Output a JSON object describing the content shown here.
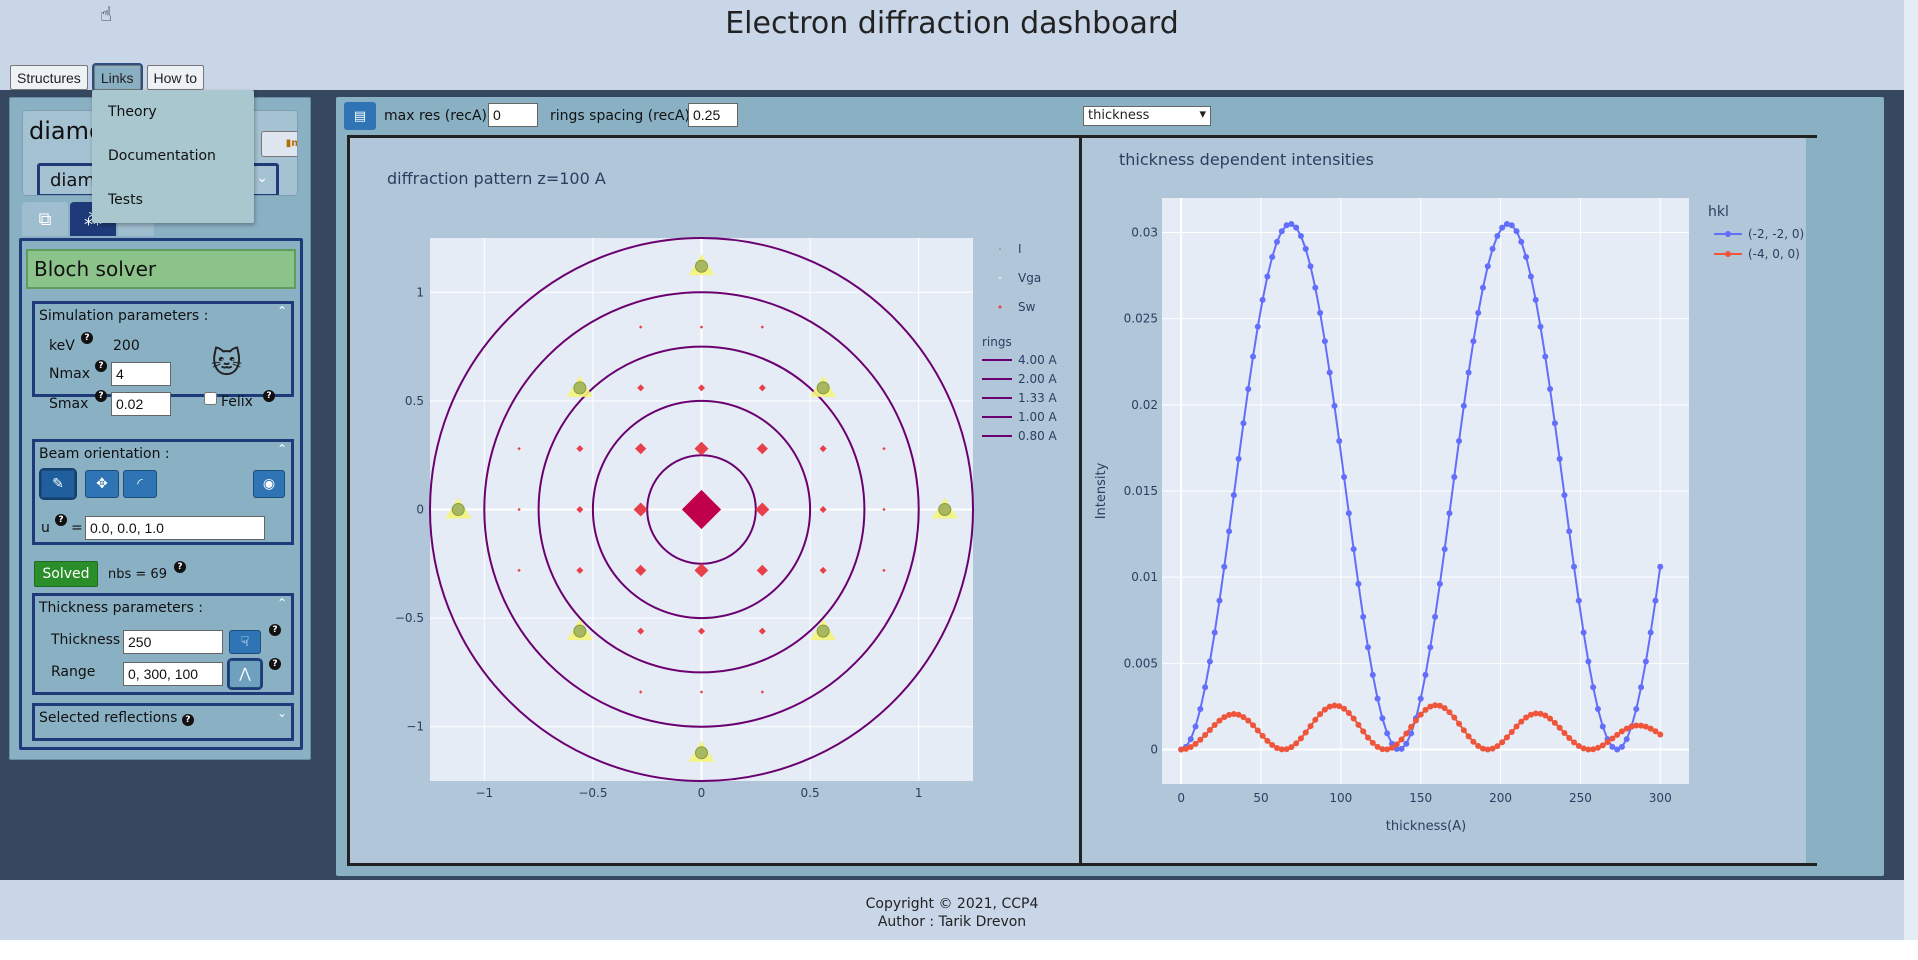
{
  "app": {
    "title": "Electron diffraction dashboard"
  },
  "navbar": {
    "structures": "Structures",
    "links": "Links",
    "howto": "How to"
  },
  "links_menu": {
    "items": [
      "Theory",
      "Documentation",
      "Tests"
    ]
  },
  "structure": {
    "name": "diamond",
    "selected": "diamond"
  },
  "solver": {
    "title": "Bloch solver",
    "sim": {
      "title": "Simulation parameters :",
      "kev_label": "keV",
      "kev_value": "200",
      "nmax_label": "Nmax",
      "nmax_value": "4",
      "smax_label": "Smax",
      "smax_value": "0.02",
      "felix_label": "Felix"
    },
    "beam": {
      "title": "Beam orientation :",
      "u_label": "u",
      "u_eq": "=",
      "u_value": "0.0, 0.0, 1.0"
    },
    "status": {
      "solved_label": "Solved",
      "nbs_text": "nbs = 69"
    },
    "thickness": {
      "title": "Thickness parameters :",
      "thickness_label": "Thickness",
      "thickness_value": "250",
      "range_label": "Range",
      "range_value": "0, 300, 100"
    },
    "selected_reflections": "Selected reflections"
  },
  "controls": {
    "max_res_label": "max res (recA) :",
    "max_res_value": "0",
    "rings_label": "rings spacing (recA) :",
    "rings_value": "0.25",
    "plot_select": "thickness"
  },
  "colors": {
    "accent": "#1e3a78",
    "series1": "#636efa",
    "series2": "#ef553b",
    "ring": "#6b0070"
  },
  "chart_data": [
    {
      "type": "scatter",
      "title": "diffraction pattern z=100 A",
      "xlim": [
        -1.25,
        1.25
      ],
      "ylim": [
        1.25,
        -1.25
      ],
      "x_ticks": [
        -1,
        -0.5,
        0,
        0.5,
        1
      ],
      "x_tick_labels": [
        "−1",
        "−0.5",
        "0",
        "0.5",
        "1"
      ],
      "y_ticks": [
        -1,
        -0.5,
        0,
        0.5,
        1
      ],
      "y_tick_labels": [
        "−1",
        "−0.5",
        "0",
        "0.5",
        "1"
      ],
      "legend": [
        "I",
        "Vga",
        "Sw"
      ],
      "rings_title": "rings",
      "rings": [
        {
          "label": "4.00 A",
          "radius": 0.25
        },
        {
          "label": "2.00 A",
          "radius": 0.5
        },
        {
          "label": "1.33 A",
          "radius": 0.75
        },
        {
          "label": "1.00 A",
          "radius": 1.0
        },
        {
          "label": "0.80 A",
          "radius": 1.25
        }
      ],
      "vga_points": [
        [
          0,
          -1.12
        ],
        [
          -0.56,
          -0.56
        ],
        [
          0.56,
          -0.56
        ],
        [
          -1.12,
          0
        ],
        [
          1.12,
          0
        ],
        [
          -0.56,
          0.56
        ],
        [
          0.56,
          0.56
        ],
        [
          0,
          1.12
        ]
      ],
      "sw_points": [
        [
          0,
          0,
          14
        ],
        [
          0,
          -0.28,
          5
        ],
        [
          0,
          0.28,
          5
        ],
        [
          -0.28,
          0,
          5
        ],
        [
          0.28,
          0,
          5
        ],
        [
          -0.28,
          -0.28,
          4
        ],
        [
          0.28,
          -0.28,
          4
        ],
        [
          -0.28,
          0.28,
          4
        ],
        [
          0.28,
          0.28,
          4
        ],
        [
          0,
          -0.56,
          2.5
        ],
        [
          0,
          0.56,
          2.5
        ],
        [
          -0.56,
          0,
          2.5
        ],
        [
          0.56,
          0,
          2.5
        ],
        [
          -0.28,
          -0.56,
          2.5
        ],
        [
          0.28,
          -0.56,
          2.5
        ],
        [
          -0.28,
          0.56,
          2.5
        ],
        [
          0.28,
          0.56,
          2.5
        ],
        [
          -0.56,
          -0.28,
          2.5
        ],
        [
          0.56,
          -0.28,
          2.5
        ],
        [
          -0.56,
          0.28,
          2.5
        ],
        [
          0.56,
          0.28,
          2.5
        ],
        [
          0,
          -0.84,
          1.2
        ],
        [
          0,
          0.84,
          1.2
        ],
        [
          -0.84,
          0,
          1.2
        ],
        [
          0.84,
          0,
          1.2
        ],
        [
          -0.28,
          -0.84,
          1.2
        ],
        [
          0.28,
          -0.84,
          1.2
        ],
        [
          -0.28,
          0.84,
          1.2
        ],
        [
          0.28,
          0.84,
          1.2
        ],
        [
          -0.84,
          -0.28,
          1.2
        ],
        [
          0.84,
          -0.28,
          1.2
        ],
        [
          -0.84,
          0.28,
          1.2
        ],
        [
          0.84,
          0.28,
          1.2
        ]
      ]
    },
    {
      "type": "line",
      "title": "thickness dependent intensities",
      "xlabel": "thickness(A)",
      "ylabel": "Intensity",
      "xlim": [
        -12,
        318
      ],
      "ylim": [
        -0.002,
        0.032
      ],
      "x_ticks": [
        0,
        50,
        100,
        150,
        200,
        250,
        300
      ],
      "y_ticks": [
        0,
        0.005,
        0.01,
        0.015,
        0.02,
        0.025,
        0.03
      ],
      "legend_title": "hkl",
      "series": [
        {
          "name": "(-2, -2, 0)",
          "color": "#636efa",
          "model": {
            "amp": 0.0305,
            "period": 136.5,
            "extra_amp": 0.0003,
            "extra_period": 68.25,
            "dx": 3
          }
        },
        {
          "name": "(-4, 0, 0)",
          "color": "#ef553b",
          "model": {
            "amp": 0.0017,
            "period": 64,
            "growth": 0.55,
            "slow_period": 260,
            "dx": 3
          }
        }
      ]
    }
  ]
}
